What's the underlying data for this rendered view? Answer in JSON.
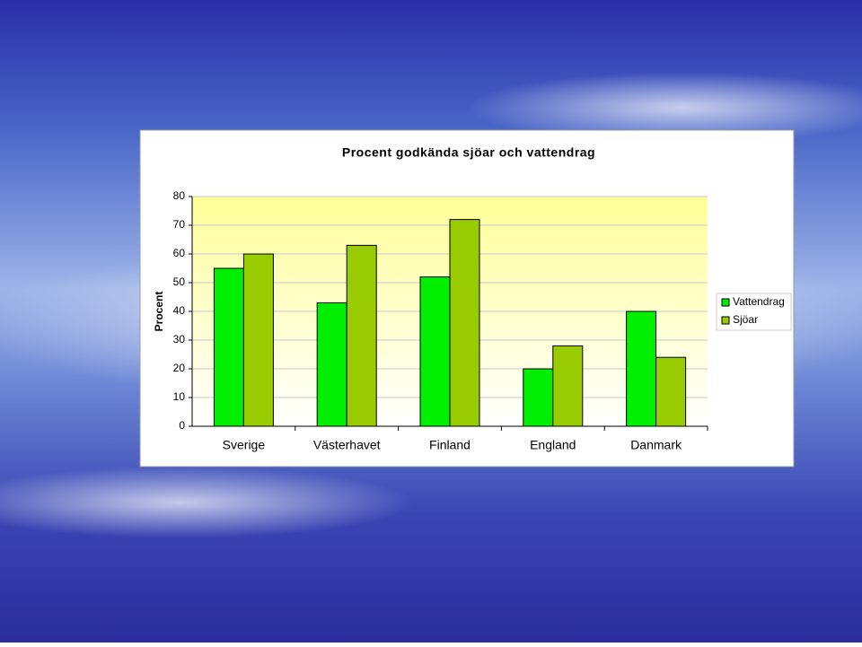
{
  "chart_data": {
    "type": "bar",
    "title": "Procent godkända sjöar och vattendrag",
    "ylabel": "Procent",
    "categories": [
      "Sverige",
      "Västerhavet",
      "Finland",
      "England",
      "Danmark"
    ],
    "series": [
      {
        "name": "Vattendrag",
        "color": "#00ee00",
        "values": [
          55,
          43,
          52,
          20,
          40
        ]
      },
      {
        "name": "Sjöar",
        "color": "#99cc00",
        "values": [
          60,
          63,
          72,
          28,
          24
        ]
      }
    ],
    "ylim": [
      0,
      80
    ],
    "yticks": [
      0,
      10,
      20,
      30,
      40,
      50,
      60,
      70,
      80
    ],
    "grid": true,
    "legend": "right"
  }
}
